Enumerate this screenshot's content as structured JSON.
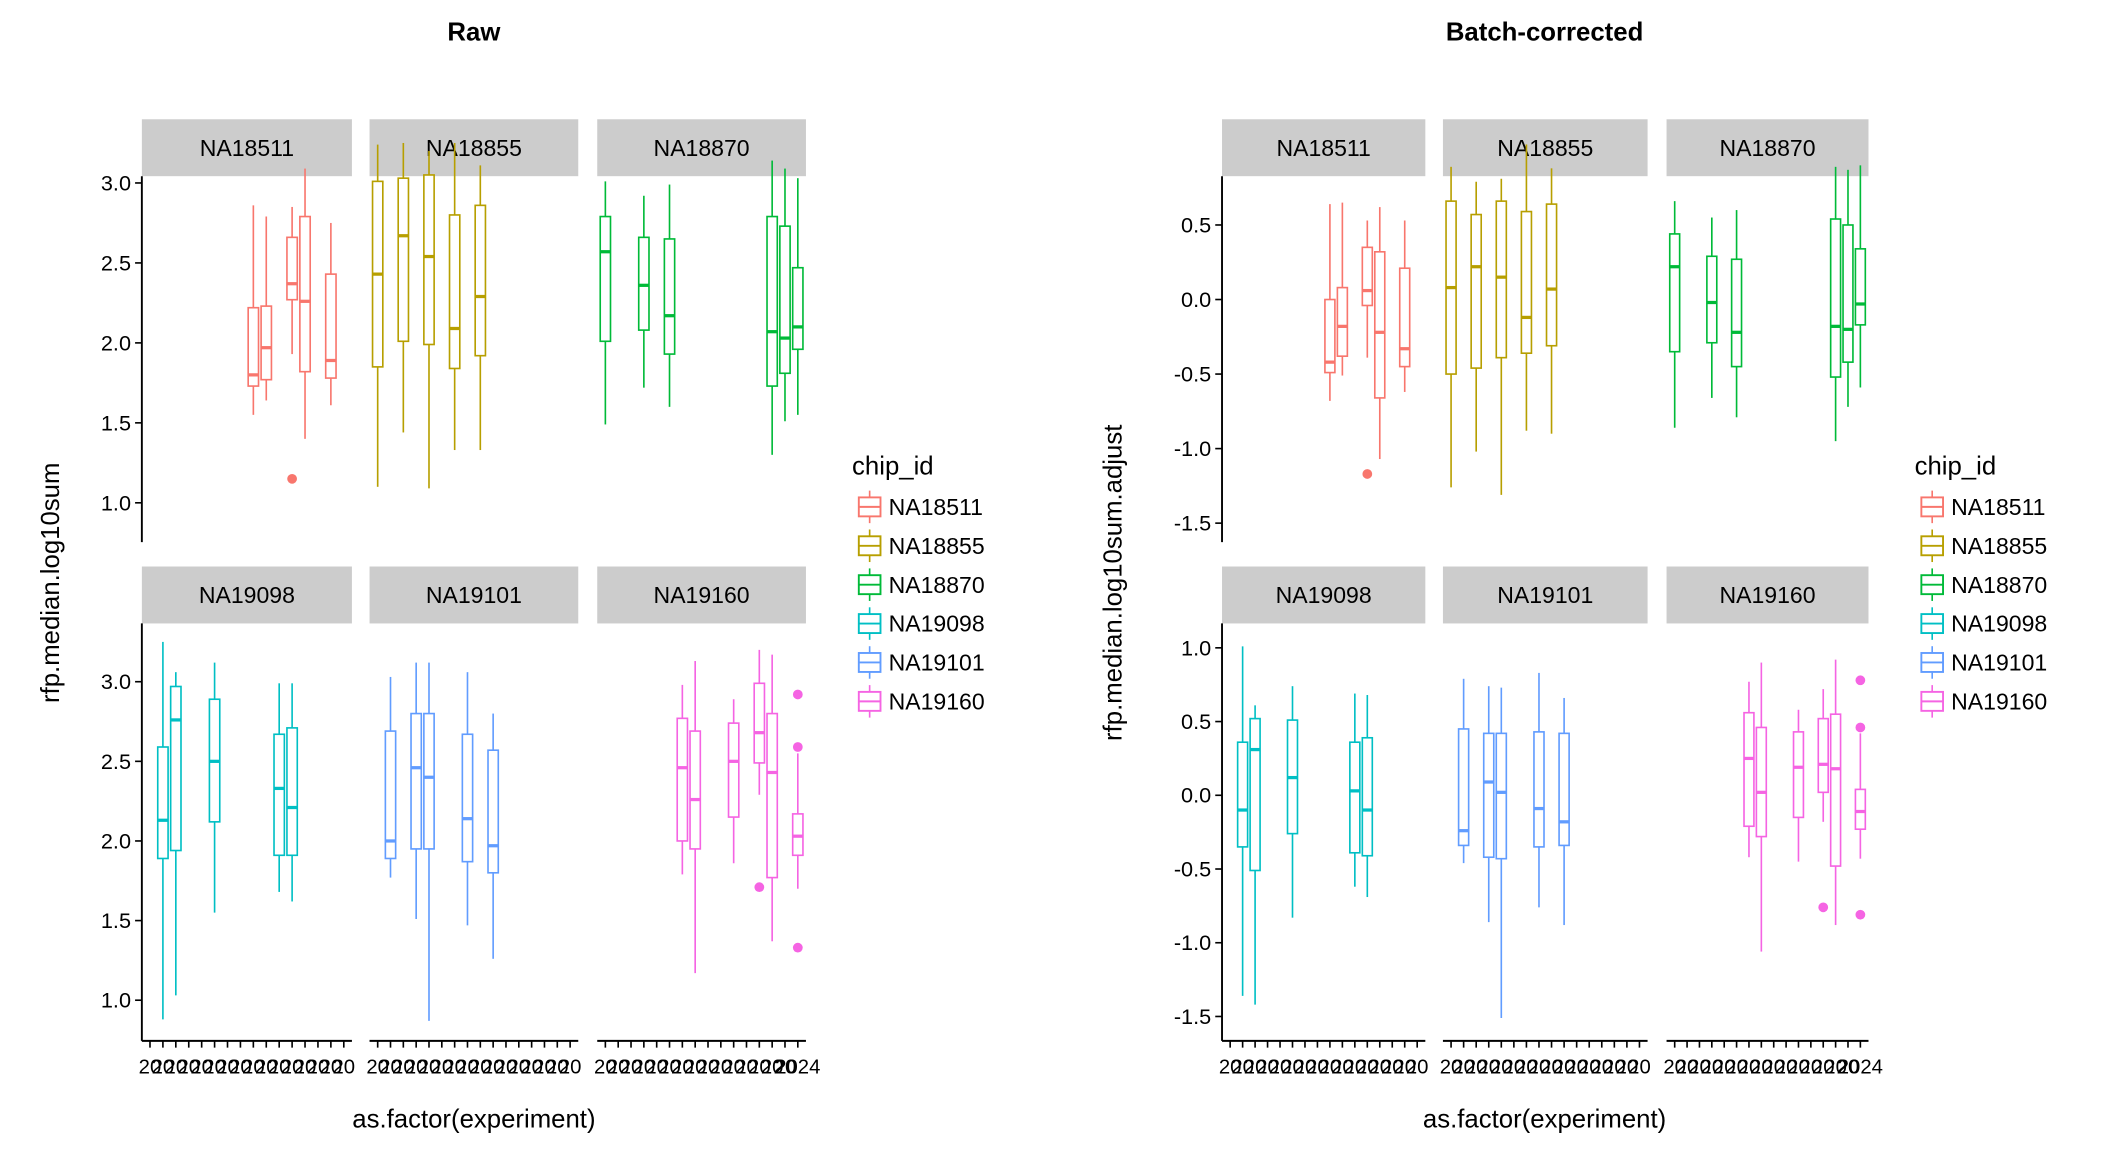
{
  "chart_data": [
    {
      "type": "box",
      "title": "Raw",
      "xlabel": "as.factor(experiment)",
      "ylabel": "rfp.median.log10sum",
      "yticks": [
        1.0,
        1.5,
        2.0,
        2.5,
        3.0
      ],
      "ylim": [
        0.8,
        3.3
      ],
      "n_experiments_per_facet": 16,
      "x_tick_labels_note": "16 overlapping 8-digit experiment labels per facet; illegible except the final visible '24'",
      "x_tick_label_tail": "24",
      "legend": {
        "title": "chip_id",
        "position": "right"
      },
      "facets": [
        {
          "name": "NA18511",
          "color": "#F8766D",
          "boxes": [
            {
              "x": 8,
              "lo": 1.55,
              "q1": 1.73,
              "med": 1.8,
              "q3": 2.22,
              "hi": 2.86,
              "outliers": []
            },
            {
              "x": 9,
              "lo": 1.64,
              "q1": 1.77,
              "med": 1.97,
              "q3": 2.23,
              "hi": 2.79,
              "outliers": []
            },
            {
              "x": 11,
              "lo": 1.93,
              "q1": 2.27,
              "med": 2.37,
              "q3": 2.66,
              "hi": 2.85,
              "outliers": [
                1.15
              ]
            },
            {
              "x": 12,
              "lo": 1.4,
              "q1": 1.82,
              "med": 2.26,
              "q3": 2.79,
              "hi": 3.09,
              "outliers": []
            },
            {
              "x": 14,
              "lo": 1.61,
              "q1": 1.78,
              "med": 1.89,
              "q3": 2.43,
              "hi": 2.75,
              "outliers": []
            }
          ]
        },
        {
          "name": "NA18855",
          "color": "#B79F00",
          "boxes": [
            {
              "x": 0,
              "lo": 1.1,
              "q1": 1.85,
              "med": 2.43,
              "q3": 3.01,
              "hi": 3.24,
              "outliers": []
            },
            {
              "x": 2,
              "lo": 1.44,
              "q1": 2.01,
              "med": 2.67,
              "q3": 3.03,
              "hi": 3.25,
              "outliers": []
            },
            {
              "x": 4,
              "lo": 1.09,
              "q1": 1.99,
              "med": 2.54,
              "q3": 3.05,
              "hi": 3.2,
              "outliers": []
            },
            {
              "x": 6,
              "lo": 1.33,
              "q1": 1.84,
              "med": 2.09,
              "q3": 2.8,
              "hi": 3.25,
              "outliers": []
            },
            {
              "x": 8,
              "lo": 1.33,
              "q1": 1.92,
              "med": 2.29,
              "q3": 2.86,
              "hi": 3.11,
              "outliers": []
            }
          ]
        },
        {
          "name": "NA18870",
          "color": "#00BA38",
          "boxes": [
            {
              "x": 0,
              "lo": 1.49,
              "q1": 2.01,
              "med": 2.57,
              "q3": 2.79,
              "hi": 3.01,
              "outliers": []
            },
            {
              "x": 3,
              "lo": 1.72,
              "q1": 2.08,
              "med": 2.36,
              "q3": 2.66,
              "hi": 2.92,
              "outliers": []
            },
            {
              "x": 5,
              "lo": 1.6,
              "q1": 1.93,
              "med": 2.17,
              "q3": 2.65,
              "hi": 2.99,
              "outliers": []
            },
            {
              "x": 13,
              "lo": 1.3,
              "q1": 1.73,
              "med": 2.07,
              "q3": 2.79,
              "hi": 3.14,
              "outliers": []
            },
            {
              "x": 14,
              "lo": 1.51,
              "q1": 1.81,
              "med": 2.03,
              "q3": 2.73,
              "hi": 3.09,
              "outliers": []
            },
            {
              "x": 15,
              "lo": 1.55,
              "q1": 1.96,
              "med": 2.1,
              "q3": 2.47,
              "hi": 3.03,
              "outliers": []
            }
          ]
        },
        {
          "name": "NA19098",
          "color": "#00BFC4",
          "boxes": [
            {
              "x": 1,
              "lo": 0.88,
              "q1": 1.89,
              "med": 2.13,
              "q3": 2.59,
              "hi": 3.25,
              "outliers": []
            },
            {
              "x": 2,
              "lo": 1.03,
              "q1": 1.94,
              "med": 2.76,
              "q3": 2.97,
              "hi": 3.06,
              "outliers": []
            },
            {
              "x": 5,
              "lo": 1.55,
              "q1": 2.12,
              "med": 2.5,
              "q3": 2.89,
              "hi": 3.12,
              "outliers": []
            },
            {
              "x": 10,
              "lo": 1.68,
              "q1": 1.91,
              "med": 2.33,
              "q3": 2.67,
              "hi": 2.99,
              "outliers": []
            },
            {
              "x": 11,
              "lo": 1.62,
              "q1": 1.91,
              "med": 2.21,
              "q3": 2.71,
              "hi": 2.99,
              "outliers": []
            }
          ]
        },
        {
          "name": "NA19101",
          "color": "#619CFF",
          "boxes": [
            {
              "x": 1,
              "lo": 1.77,
              "q1": 1.89,
              "med": 2.0,
              "q3": 2.69,
              "hi": 3.03,
              "outliers": []
            },
            {
              "x": 3,
              "lo": 1.51,
              "q1": 1.95,
              "med": 2.46,
              "q3": 2.8,
              "hi": 3.12,
              "outliers": []
            },
            {
              "x": 4,
              "lo": 0.87,
              "q1": 1.95,
              "med": 2.4,
              "q3": 2.8,
              "hi": 3.12,
              "outliers": []
            },
            {
              "x": 7,
              "lo": 1.47,
              "q1": 1.87,
              "med": 2.14,
              "q3": 2.67,
              "hi": 3.06,
              "outliers": []
            },
            {
              "x": 9,
              "lo": 1.26,
              "q1": 1.8,
              "med": 1.97,
              "q3": 2.57,
              "hi": 2.8,
              "outliers": []
            }
          ]
        },
        {
          "name": "NA19160",
          "color": "#F564E3",
          "boxes": [
            {
              "x": 6,
              "lo": 1.79,
              "q1": 2.0,
              "med": 2.46,
              "q3": 2.77,
              "hi": 2.98,
              "outliers": []
            },
            {
              "x": 7,
              "lo": 1.17,
              "q1": 1.95,
              "med": 2.26,
              "q3": 2.69,
              "hi": 3.13,
              "outliers": []
            },
            {
              "x": 10,
              "lo": 1.86,
              "q1": 2.15,
              "med": 2.5,
              "q3": 2.74,
              "hi": 2.89,
              "outliers": []
            },
            {
              "x": 12,
              "lo": 2.29,
              "q1": 2.49,
              "med": 2.68,
              "q3": 2.99,
              "hi": 3.2,
              "outliers": [
                1.71
              ]
            },
            {
              "x": 13,
              "lo": 1.37,
              "q1": 1.77,
              "med": 2.43,
              "q3": 2.8,
              "hi": 3.17,
              "outliers": []
            },
            {
              "x": 15,
              "lo": 1.7,
              "q1": 1.91,
              "med": 2.03,
              "q3": 2.17,
              "hi": 2.55,
              "outliers": [
                2.92,
                2.59,
                1.33
              ]
            }
          ]
        }
      ]
    },
    {
      "type": "box",
      "title": "Batch-corrected",
      "xlabel": "as.factor(experiment)",
      "ylabel": "rfp.median.log10sum.adjust",
      "yticks": [
        -1.5,
        -1.0,
        -0.5,
        0.0,
        0.5,
        1.0
      ],
      "ylim": [
        -1.62,
        1.18
      ],
      "n_experiments_per_facet": 16,
      "x_tick_labels_note": "16 overlapping 8-digit experiment labels per facet; illegible except the final visible '24'",
      "x_tick_label_tail": "24",
      "legend": {
        "title": "chip_id",
        "position": "right"
      },
      "facets": [
        {
          "name": "NA18511",
          "color": "#F8766D",
          "boxes": [
            {
              "x": 8,
              "lo": -0.68,
              "q1": -0.49,
              "med": -0.42,
              "q3": 0.0,
              "hi": 0.64,
              "outliers": []
            },
            {
              "x": 9,
              "lo": -0.51,
              "q1": -0.38,
              "med": -0.18,
              "q3": 0.08,
              "hi": 0.65,
              "outliers": []
            },
            {
              "x": 11,
              "lo": -0.39,
              "q1": -0.04,
              "med": 0.06,
              "q3": 0.35,
              "hi": 0.53,
              "outliers": [
                -1.17
              ]
            },
            {
              "x": 12,
              "lo": -1.07,
              "q1": -0.66,
              "med": -0.22,
              "q3": 0.32,
              "hi": 0.62,
              "outliers": []
            },
            {
              "x": 14,
              "lo": -0.62,
              "q1": -0.45,
              "med": -0.33,
              "q3": 0.21,
              "hi": 0.53,
              "outliers": []
            }
          ]
        },
        {
          "name": "NA18855",
          "color": "#B79F00",
          "boxes": [
            {
              "x": 0,
              "lo": -1.26,
              "q1": -0.5,
              "med": 0.08,
              "q3": 0.66,
              "hi": 0.89,
              "outliers": []
            },
            {
              "x": 2,
              "lo": -1.02,
              "q1": -0.46,
              "med": 0.22,
              "q3": 0.57,
              "hi": 0.79,
              "outliers": []
            },
            {
              "x": 4,
              "lo": -1.31,
              "q1": -0.39,
              "med": 0.15,
              "q3": 0.66,
              "hi": 0.81,
              "outliers": []
            },
            {
              "x": 6,
              "lo": -0.88,
              "q1": -0.36,
              "med": -0.12,
              "q3": 0.59,
              "hi": 1.04,
              "outliers": []
            },
            {
              "x": 8,
              "lo": -0.9,
              "q1": -0.31,
              "med": 0.07,
              "q3": 0.64,
              "hi": 0.88,
              "outliers": []
            }
          ]
        },
        {
          "name": "NA18870",
          "color": "#00BA38",
          "boxes": [
            {
              "x": 0,
              "lo": -0.86,
              "q1": -0.35,
              "med": 0.22,
              "q3": 0.44,
              "hi": 0.66,
              "outliers": []
            },
            {
              "x": 3,
              "lo": -0.66,
              "q1": -0.29,
              "med": -0.02,
              "q3": 0.29,
              "hi": 0.55,
              "outliers": []
            },
            {
              "x": 5,
              "lo": -0.79,
              "q1": -0.45,
              "med": -0.22,
              "q3": 0.27,
              "hi": 0.6,
              "outliers": []
            },
            {
              "x": 13,
              "lo": -0.95,
              "q1": -0.52,
              "med": -0.18,
              "q3": 0.54,
              "hi": 0.89,
              "outliers": []
            },
            {
              "x": 14,
              "lo": -0.72,
              "q1": -0.42,
              "med": -0.2,
              "q3": 0.5,
              "hi": 0.87,
              "outliers": []
            },
            {
              "x": 15,
              "lo": -0.59,
              "q1": -0.17,
              "med": -0.03,
              "q3": 0.34,
              "hi": 0.9,
              "outliers": []
            }
          ]
        },
        {
          "name": "NA19098",
          "color": "#00BFC4",
          "boxes": [
            {
              "x": 1,
              "lo": -1.36,
              "q1": -0.35,
              "med": -0.1,
              "q3": 0.36,
              "hi": 1.01,
              "outliers": []
            },
            {
              "x": 2,
              "lo": -1.42,
              "q1": -0.51,
              "med": 0.31,
              "q3": 0.52,
              "hi": 0.61,
              "outliers": []
            },
            {
              "x": 5,
              "lo": -0.83,
              "q1": -0.26,
              "med": 0.12,
              "q3": 0.51,
              "hi": 0.74,
              "outliers": []
            },
            {
              "x": 10,
              "lo": -0.62,
              "q1": -0.39,
              "med": 0.03,
              "q3": 0.36,
              "hi": 0.69,
              "outliers": []
            },
            {
              "x": 11,
              "lo": -0.69,
              "q1": -0.41,
              "med": -0.1,
              "q3": 0.39,
              "hi": 0.68,
              "outliers": []
            }
          ]
        },
        {
          "name": "NA19101",
          "color": "#619CFF",
          "boxes": [
            {
              "x": 1,
              "lo": -0.46,
              "q1": -0.34,
              "med": -0.24,
              "q3": 0.45,
              "hi": 0.79,
              "outliers": []
            },
            {
              "x": 3,
              "lo": -0.86,
              "q1": -0.42,
              "med": 0.09,
              "q3": 0.42,
              "hi": 0.74,
              "outliers": []
            },
            {
              "x": 4,
              "lo": -1.51,
              "q1": -0.43,
              "med": 0.02,
              "q3": 0.42,
              "hi": 0.73,
              "outliers": []
            },
            {
              "x": 7,
              "lo": -0.76,
              "q1": -0.35,
              "med": -0.09,
              "q3": 0.43,
              "hi": 0.83,
              "outliers": []
            },
            {
              "x": 9,
              "lo": -0.88,
              "q1": -0.34,
              "med": -0.18,
              "q3": 0.42,
              "hi": 0.66,
              "outliers": []
            }
          ]
        },
        {
          "name": "NA19160",
          "color": "#F564E3",
          "boxes": [
            {
              "x": 6,
              "lo": -0.42,
              "q1": -0.21,
              "med": 0.25,
              "q3": 0.56,
              "hi": 0.77,
              "outliers": []
            },
            {
              "x": 7,
              "lo": -1.06,
              "q1": -0.28,
              "med": 0.02,
              "q3": 0.46,
              "hi": 0.9,
              "outliers": []
            },
            {
              "x": 10,
              "lo": -0.45,
              "q1": -0.15,
              "med": 0.19,
              "q3": 0.43,
              "hi": 0.58,
              "outliers": []
            },
            {
              "x": 12,
              "lo": -0.18,
              "q1": 0.02,
              "med": 0.21,
              "q3": 0.52,
              "hi": 0.72,
              "outliers": [
                -0.76
              ]
            },
            {
              "x": 13,
              "lo": -0.88,
              "q1": -0.48,
              "med": 0.18,
              "q3": 0.55,
              "hi": 0.92,
              "outliers": []
            },
            {
              "x": 15,
              "lo": -0.43,
              "q1": -0.23,
              "med": -0.11,
              "q3": 0.04,
              "hi": 0.42,
              "outliers": [
                0.78,
                0.46,
                -0.81
              ]
            }
          ]
        }
      ]
    }
  ]
}
